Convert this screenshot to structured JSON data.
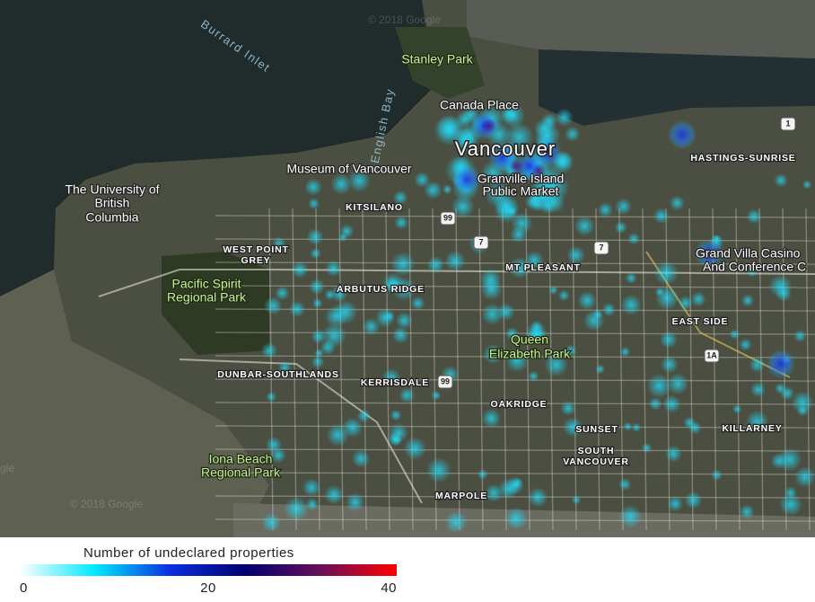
{
  "labels": [
    "Burrard Inlet",
    "English Bay",
    "Stanley Park",
    "Canada Place",
    "Vancouver",
    "Museum of Vancouver",
    "Granville Island",
    "Public Market",
    "The University of",
    "British",
    "Columbia",
    "KITSILANO",
    "WEST POINT",
    "GREY",
    "Pacific Spirit",
    "Regional Park",
    "ARBUTUS RIDGE",
    "MT PLEASANT",
    "HASTINGS-SUNRISE",
    "Grand Villa Casino",
    "And Conference C",
    "EAST SIDE",
    "Queen",
    "Elizabeth Park",
    "DUNBAR-SOUTHLANDS",
    "KERRISDALE",
    "OAKRIDGE",
    "SUNSET",
    "SOUTH",
    "VANCOUVER",
    "KILLARNEY",
    "Iona Beach",
    "Regional Park",
    "MARPOLE"
  ],
  "shields": [
    "99",
    "7",
    "7",
    "99",
    "1A",
    "1"
  ],
  "watermarks": [
    "© 2018 Google",
    "© 2018 Google",
    "gle"
  ],
  "legend": {
    "title": "Number of undeclared properties",
    "range": [
      0,
      40
    ],
    "ticks": [
      0,
      20,
      40
    ],
    "colors": [
      "#ffffff",
      "#00e8ff",
      "#0a2ee0",
      "#000070",
      "#6a0f5a",
      "#ff0000"
    ]
  }
}
